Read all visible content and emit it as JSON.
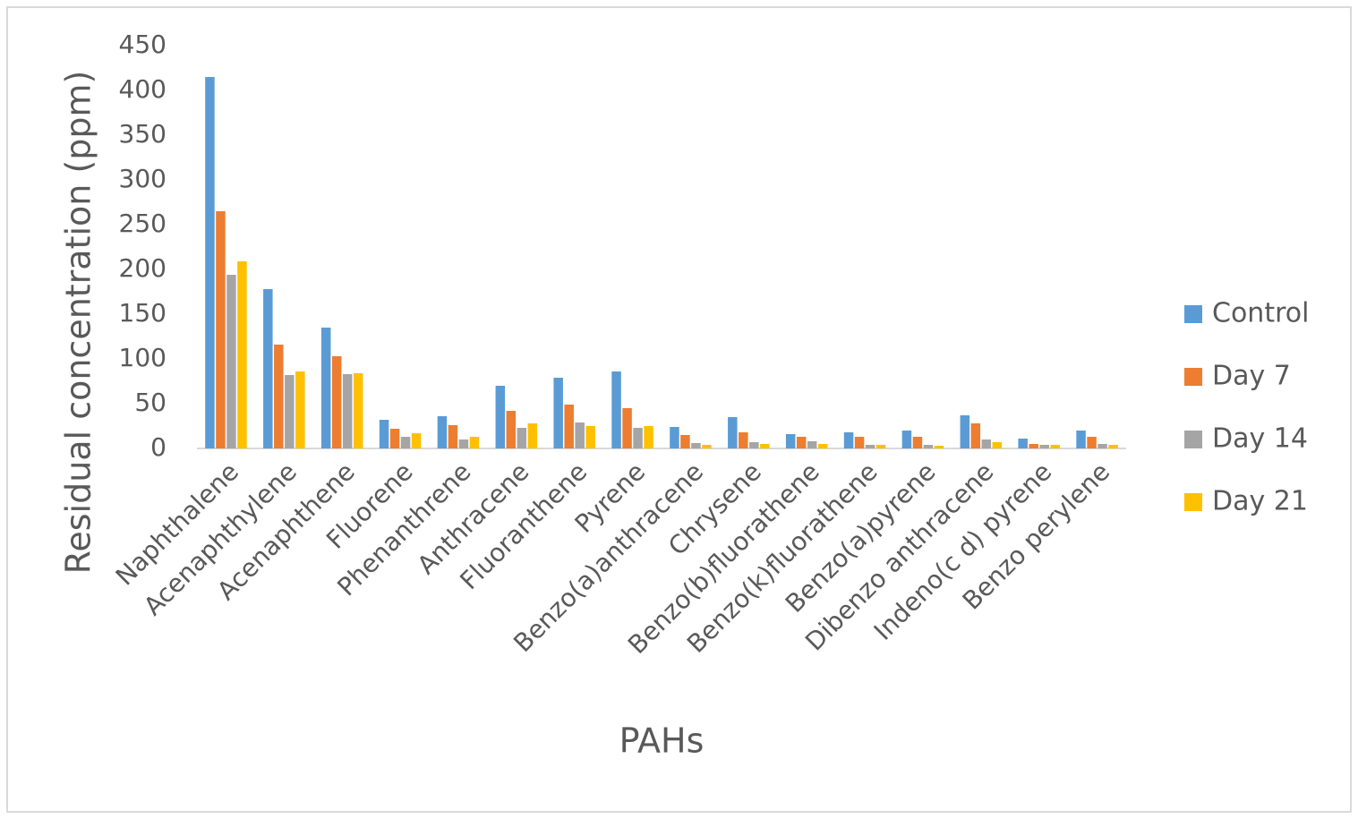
{
  "chart_data": {
    "type": "bar",
    "x_label": "PAHs",
    "y_label": "Residual concentration (ppm)",
    "categories": [
      "Naphthalene",
      "Acenaphthylene",
      "Acenaphthene",
      "Fluorene",
      "Phenanthrene",
      "Anthracene",
      "Fluoranthene",
      "Pyrene",
      "Benzo(a)anthracene",
      "Chrysene",
      "Benzo(b)fluorathene",
      "Benzo(k)fluorathene",
      "Benzo(a)pyrene",
      "Dibenzo anthracene",
      "Indeno(c d) pyrene",
      "Benzo perylene"
    ],
    "series": [
      {
        "name": "Control",
        "color": "#5b9bd5",
        "values": [
          415,
          178,
          135,
          32,
          36,
          70,
          79,
          86,
          24,
          35,
          16,
          18,
          20,
          37,
          11,
          20
        ]
      },
      {
        "name": "Day 7",
        "color": "#ed7d31",
        "values": [
          265,
          116,
          103,
          22,
          26,
          42,
          49,
          45,
          15,
          18,
          13,
          13,
          13,
          28,
          5,
          13
        ]
      },
      {
        "name": "Day 14",
        "color": "#a5a5a5",
        "values": [
          194,
          82,
          83,
          13,
          10,
          23,
          29,
          23,
          6,
          7,
          8,
          4,
          4,
          10,
          4,
          5
        ]
      },
      {
        "name": "Day 21",
        "color": "#ffc000",
        "values": [
          209,
          86,
          84,
          17,
          13,
          28,
          25,
          25,
          4,
          5,
          5,
          4,
          3,
          7,
          4,
          4
        ]
      }
    ],
    "ylim": [
      0,
      450
    ],
    "yticks": [
      0,
      50,
      100,
      150,
      200,
      250,
      300,
      350,
      400,
      450
    ],
    "grid": false,
    "legend": "right"
  }
}
